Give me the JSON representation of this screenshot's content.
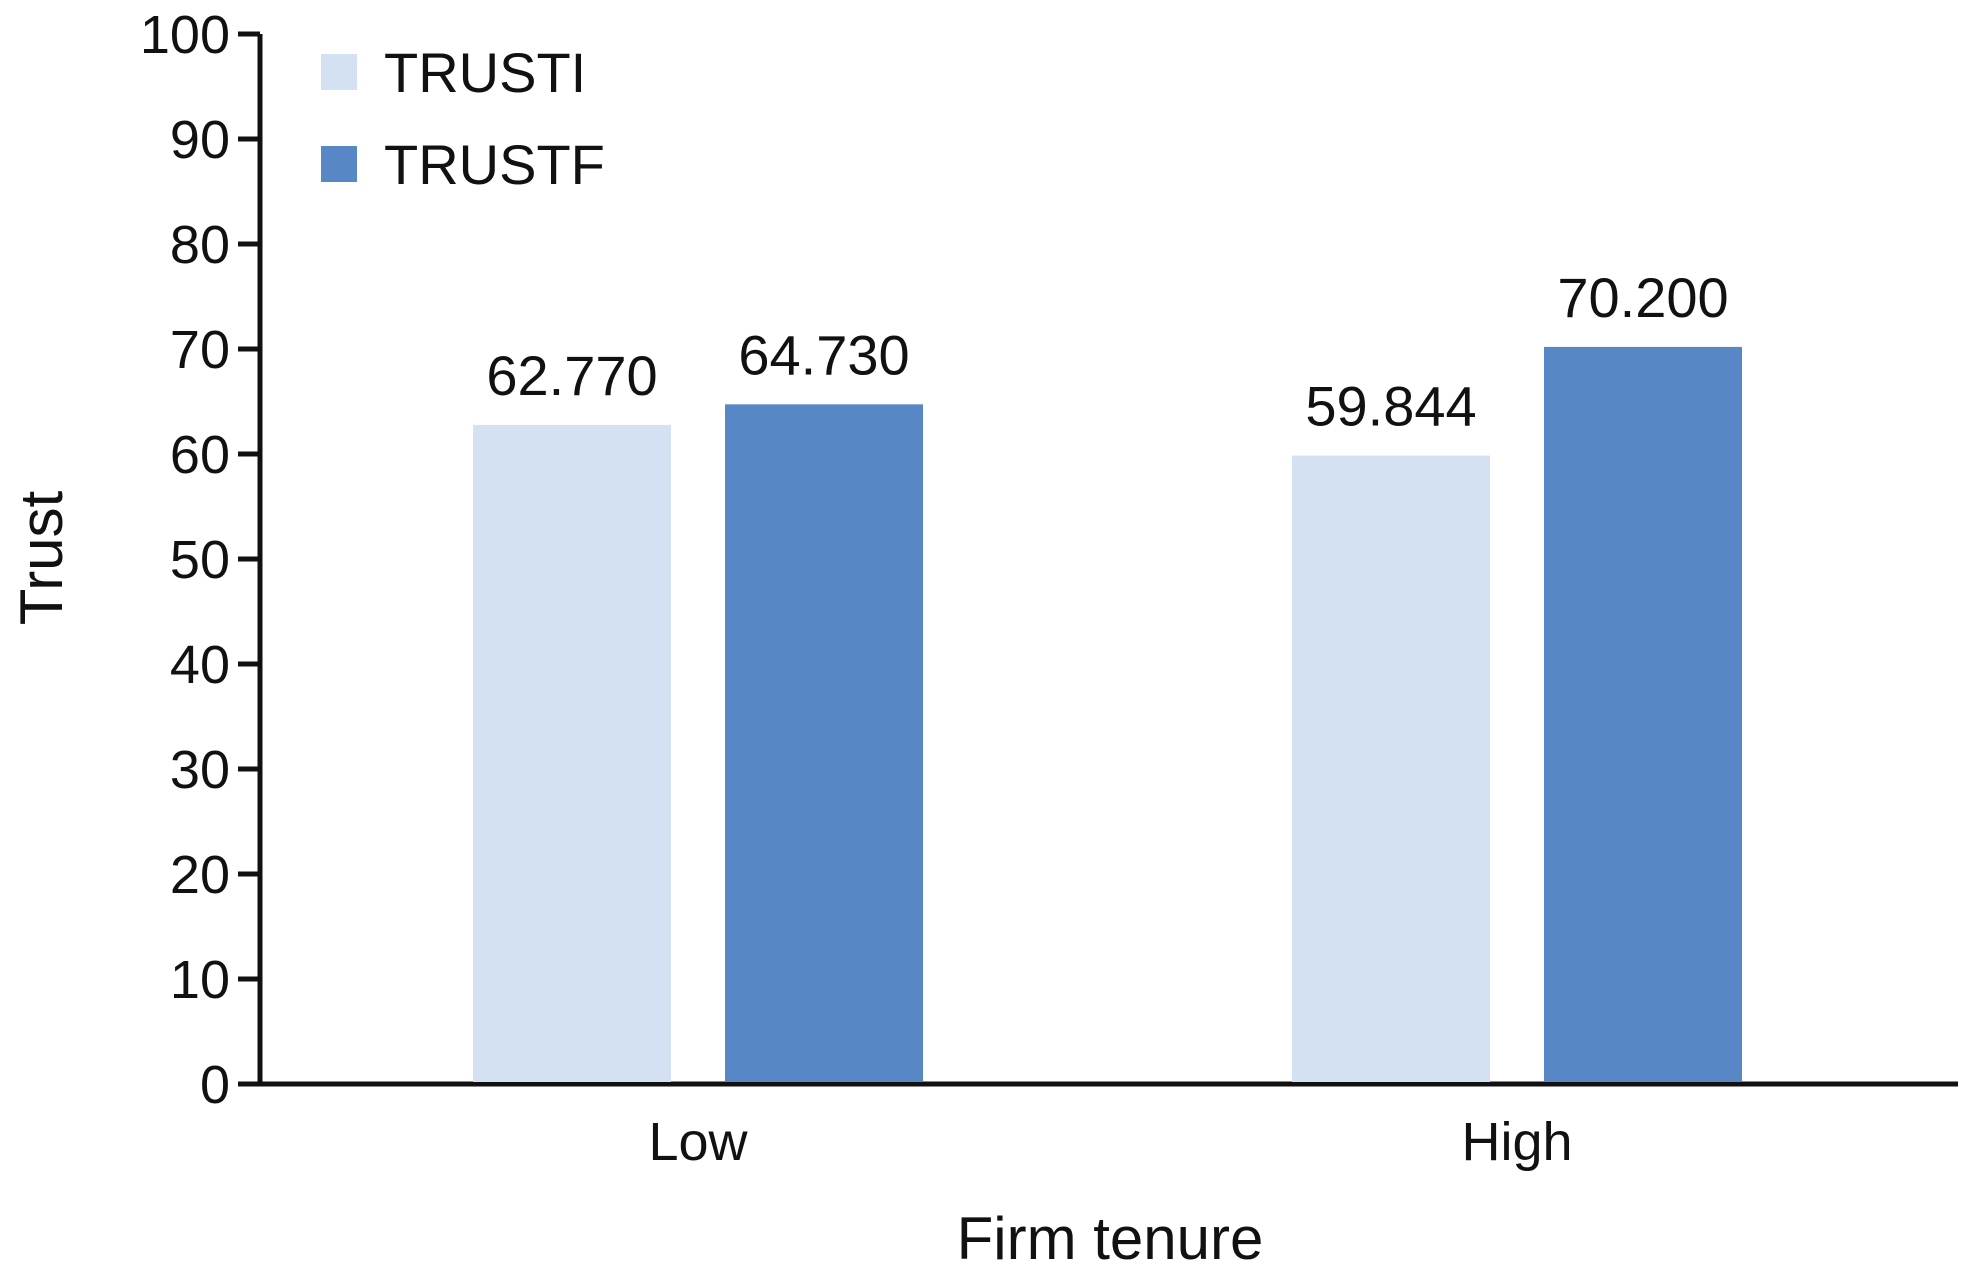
{
  "chart_data": {
    "type": "bar",
    "title": "",
    "xlabel": "Firm tenure",
    "ylabel": "Trust",
    "categories": [
      "Low",
      "High"
    ],
    "ylim": [
      0,
      100
    ],
    "yticks": [
      0,
      10,
      20,
      30,
      40,
      50,
      60,
      70,
      80,
      90,
      100
    ],
    "grid": false,
    "legend_position": "top-left",
    "series": [
      {
        "name": "TRUSTI",
        "color": "#d3e1f2",
        "values": [
          62.77,
          59.844
        ],
        "labels": [
          "62.770",
          "59.844"
        ]
      },
      {
        "name": "TRUSTF",
        "color": "#5887c5",
        "values": [
          64.73,
          70.2
        ],
        "labels": [
          "64.730",
          "70.200"
        ]
      }
    ]
  }
}
